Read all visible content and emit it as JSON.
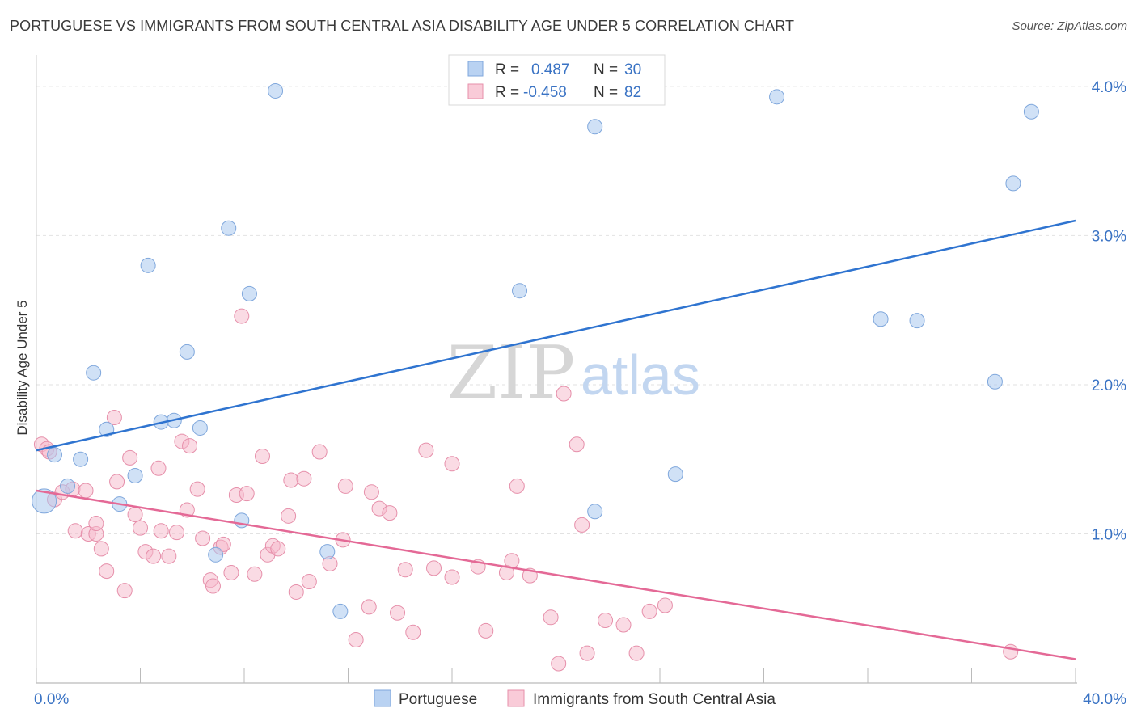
{
  "title": "PORTUGUESE VS IMMIGRANTS FROM SOUTH CENTRAL ASIA DISABILITY AGE UNDER 5 CORRELATION CHART",
  "source": "Source: ZipAtlas.com",
  "watermark": {
    "zip": "ZIP",
    "atlas": "atlas"
  },
  "colors": {
    "blue": "#a9c8ef",
    "blue_line": "#2f74d0",
    "blue_stroke": "#7fa7dc",
    "pink": "#f5b8ca",
    "pink_line": "#e46996",
    "pink_stroke": "#e68faa",
    "tick_label": "#3a73c4",
    "grid": "#e2e2e2"
  },
  "stats": [
    {
      "r_label": "R =",
      "r": "0.487",
      "n_label": "N =",
      "n": "30"
    },
    {
      "r_label": "R =",
      "r": "-0.458",
      "n_label": "N =",
      "n": "82"
    }
  ],
  "chart_data": {
    "type": "scatter",
    "title": "PORTUGUESE VS IMMIGRANTS FROM SOUTH CENTRAL ASIA DISABILITY AGE UNDER 5 CORRELATION CHART",
    "xlabel": "",
    "ylabel": "Disability Age Under 5",
    "xlim": [
      0,
      40
    ],
    "ylim": [
      0,
      4.2
    ],
    "x_tick_labels": [
      {
        "value": 0,
        "label": "0.0%"
      },
      {
        "value": 40,
        "label": "40.0%"
      }
    ],
    "y_tick_labels": [
      {
        "value": 1,
        "label": "1.0%"
      },
      {
        "value": 2,
        "label": "2.0%"
      },
      {
        "value": 3,
        "label": "3.0%"
      },
      {
        "value": 4,
        "label": "4.0%"
      }
    ],
    "grid": true,
    "legend_position": "bottom",
    "series": [
      {
        "name": "Portuguese",
        "color": "#a9c8ef",
        "trend": {
          "x0": 0,
          "y0": 1.56,
          "x1": 40,
          "y1": 3.1
        },
        "points": [
          [
            0.3,
            1.22
          ],
          [
            0.7,
            1.53
          ],
          [
            1.2,
            1.32
          ],
          [
            1.7,
            1.5
          ],
          [
            2.2,
            2.08
          ],
          [
            2.7,
            1.7
          ],
          [
            3.2,
            1.2
          ],
          [
            3.8,
            1.39
          ],
          [
            4.3,
            2.8
          ],
          [
            4.8,
            1.75
          ],
          [
            5.3,
            1.76
          ],
          [
            5.8,
            2.22
          ],
          [
            6.3,
            1.71
          ],
          [
            6.9,
            0.86
          ],
          [
            7.4,
            3.05
          ],
          [
            7.9,
            1.09
          ],
          [
            8.2,
            2.61
          ],
          [
            9.2,
            3.97
          ],
          [
            11.2,
            0.88
          ],
          [
            11.7,
            0.48
          ],
          [
            18.6,
            2.63
          ],
          [
            21.5,
            1.15
          ],
          [
            21.5,
            3.73
          ],
          [
            24.6,
            1.4
          ],
          [
            28.5,
            3.93
          ],
          [
            32.5,
            2.44
          ],
          [
            33.9,
            2.43
          ],
          [
            36.9,
            2.02
          ],
          [
            37.6,
            3.35
          ],
          [
            38.3,
            3.83
          ]
        ]
      },
      {
        "name": "Immigrants from South Central Asia",
        "color": "#f5b8ca",
        "trend": {
          "x0": 0,
          "y0": 1.29,
          "x1": 40,
          "y1": 0.16
        },
        "points": [
          [
            0.2,
            1.6
          ],
          [
            0.4,
            1.57
          ],
          [
            0.7,
            1.23
          ],
          [
            1.0,
            1.28
          ],
          [
            1.4,
            1.3
          ],
          [
            1.5,
            1.02
          ],
          [
            1.9,
            1.29
          ],
          [
            2.0,
            1.0
          ],
          [
            2.3,
            1.0
          ],
          [
            2.3,
            1.07
          ],
          [
            2.5,
            0.9
          ],
          [
            2.7,
            0.75
          ],
          [
            3.0,
            1.78
          ],
          [
            3.1,
            1.35
          ],
          [
            3.4,
            0.62
          ],
          [
            3.6,
            1.51
          ],
          [
            3.8,
            1.13
          ],
          [
            4.0,
            1.04
          ],
          [
            4.2,
            0.88
          ],
          [
            4.5,
            0.85
          ],
          [
            4.7,
            1.44
          ],
          [
            4.8,
            1.02
          ],
          [
            5.1,
            0.85
          ],
          [
            5.4,
            1.01
          ],
          [
            5.6,
            1.62
          ],
          [
            5.8,
            1.16
          ],
          [
            5.9,
            1.59
          ],
          [
            6.2,
            1.3
          ],
          [
            6.4,
            0.97
          ],
          [
            6.7,
            0.69
          ],
          [
            6.8,
            0.65
          ],
          [
            7.1,
            0.91
          ],
          [
            7.2,
            0.93
          ],
          [
            7.5,
            0.74
          ],
          [
            7.7,
            1.26
          ],
          [
            7.9,
            2.46
          ],
          [
            8.1,
            1.27
          ],
          [
            8.4,
            0.73
          ],
          [
            8.7,
            1.52
          ],
          [
            8.9,
            0.86
          ],
          [
            9.1,
            0.92
          ],
          [
            9.3,
            0.9
          ],
          [
            9.7,
            1.12
          ],
          [
            9.8,
            1.36
          ],
          [
            10.0,
            0.61
          ],
          [
            10.3,
            1.37
          ],
          [
            10.5,
            0.68
          ],
          [
            10.9,
            1.55
          ],
          [
            11.3,
            0.8
          ],
          [
            11.8,
            0.96
          ],
          [
            11.9,
            1.32
          ],
          [
            12.3,
            0.29
          ],
          [
            12.8,
            0.51
          ],
          [
            12.9,
            1.28
          ],
          [
            13.2,
            1.17
          ],
          [
            13.6,
            1.14
          ],
          [
            13.9,
            0.47
          ],
          [
            14.2,
            0.76
          ],
          [
            14.5,
            0.34
          ],
          [
            15.0,
            1.56
          ],
          [
            15.3,
            0.77
          ],
          [
            16.0,
            0.71
          ],
          [
            16.0,
            1.47
          ],
          [
            17.0,
            0.78
          ],
          [
            17.3,
            0.35
          ],
          [
            18.1,
            0.74
          ],
          [
            18.3,
            0.82
          ],
          [
            18.5,
            1.32
          ],
          [
            19.0,
            0.72
          ],
          [
            19.8,
            0.44
          ],
          [
            20.1,
            0.13
          ],
          [
            20.3,
            1.94
          ],
          [
            20.8,
            1.6
          ],
          [
            21.0,
            1.06
          ],
          [
            21.2,
            0.2
          ],
          [
            21.9,
            0.42
          ],
          [
            22.6,
            0.39
          ],
          [
            23.1,
            0.2
          ],
          [
            23.6,
            0.48
          ],
          [
            24.2,
            0.52
          ],
          [
            37.5,
            0.21
          ],
          [
            0.5,
            1.55
          ]
        ]
      }
    ]
  },
  "legend": [
    {
      "label": "Portuguese"
    },
    {
      "label": "Immigrants from South Central Asia"
    }
  ]
}
